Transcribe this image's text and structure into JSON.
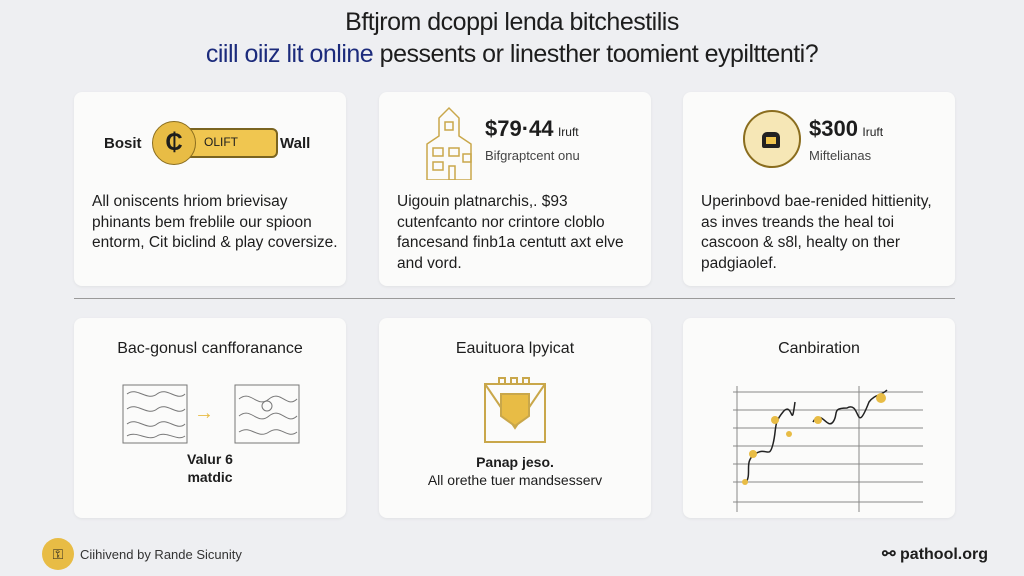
{
  "header": {
    "title": "Bftjrom dcoppi lenda bitchestilis",
    "subtitle_highlight": "ciill oiiz lit online",
    "subtitle_rest": " pessents or linesther toomient eypilttenti?"
  },
  "row1": [
    {
      "left_label": "Bosit",
      "toggle_label": "OLIFT",
      "right_label": "Wall",
      "coin_glyph": "₵",
      "body": "All oniscents hriom brievisay phinants bem freblile our spioon entorm, Cit biclind & play coversize."
    },
    {
      "price": "$79·44",
      "unit": "Iruft",
      "sub": "Bifgraptcent onu",
      "icon": "building-icon",
      "body": "Uigouin platnarchis,. $93 cutenfcanto nor crintore cloblo fancesand finb1a centutt axt elve and vord."
    },
    {
      "price": "$300",
      "unit": "Iruft",
      "sub": "Miftelianas",
      "icon": "robot-coin-icon",
      "body": "Uperinbovd bae-renided hittienity, as inves treands the heal toi cascoon & s8l, healty on ther padgiaolef."
    }
  ],
  "row2": [
    {
      "title": "Bac-gonusl canfforanance",
      "label_line1": "Valur 6",
      "label_line2": "matdic"
    },
    {
      "title": "Eauituora lpyicat",
      "label_bold": "Panap jeso.",
      "label": "All orethe tuer mandsesserv"
    },
    {
      "title": "Canbiration"
    }
  ],
  "footer": {
    "left": "Ciihivend by Rande Sicunity",
    "right": "pathool.org"
  },
  "colors": {
    "accent": "#e8bc45",
    "navy": "#1c2b7c",
    "background": "#eeeff2"
  }
}
